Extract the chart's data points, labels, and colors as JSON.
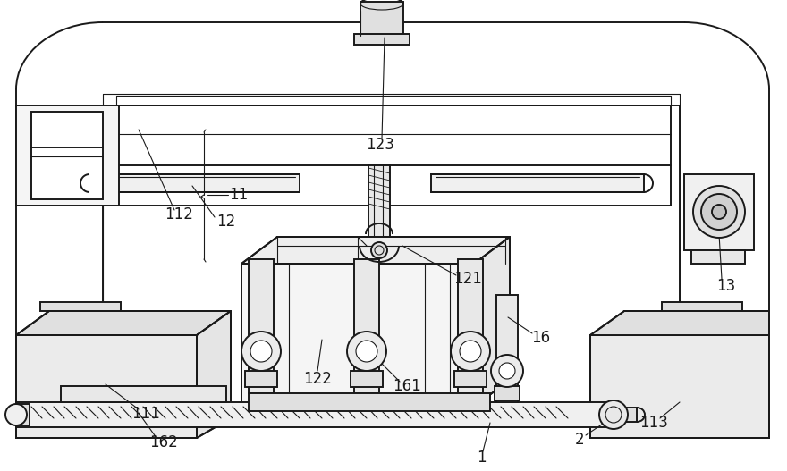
{
  "bg_color": "#ffffff",
  "lc": "#1a1a1a",
  "lw": 1.4,
  "lt": 0.8,
  "fs": 12
}
